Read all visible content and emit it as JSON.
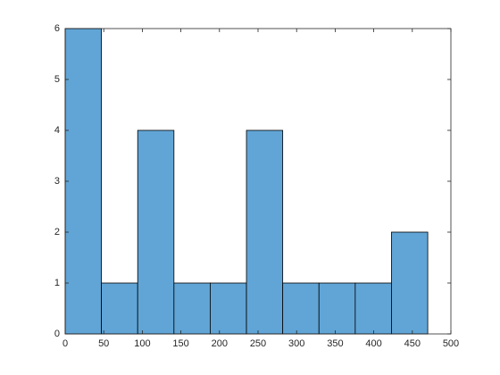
{
  "chart_data": {
    "type": "histogram",
    "bins": [
      0,
      47,
      94,
      141,
      188,
      235,
      282,
      329,
      376,
      423,
      470
    ],
    "values": [
      6,
      1,
      4,
      1,
      1,
      4,
      1,
      1,
      1,
      2
    ],
    "color": "#61a5d6",
    "edgecolor": "#000000",
    "xlim": [
      0,
      500
    ],
    "xticks": [
      0,
      50,
      100,
      150,
      200,
      250,
      300,
      350,
      400,
      450,
      500
    ],
    "ylim": [
      0,
      6
    ],
    "yticks": [
      0,
      1,
      2,
      3,
      4,
      5,
      6
    ],
    "box": true
  }
}
